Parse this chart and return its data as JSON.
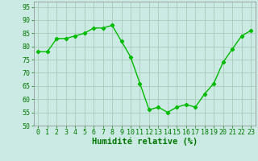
{
  "x": [
    0,
    1,
    2,
    3,
    4,
    5,
    6,
    7,
    8,
    9,
    10,
    11,
    12,
    13,
    14,
    15,
    16,
    17,
    18,
    19,
    20,
    21,
    22,
    23
  ],
  "y": [
    78,
    78,
    83,
    83,
    84,
    85,
    87,
    87,
    88,
    82,
    76,
    66,
    56,
    57,
    55,
    57,
    58,
    57,
    62,
    66,
    74,
    79,
    84,
    86
  ],
  "line_color": "#00bb00",
  "marker": "D",
  "marker_size": 2.2,
  "bg_color": "#cceae4",
  "grid_color": "#aaccbb",
  "xlabel": "Humidité relative (%)",
  "xlabel_color": "#007700",
  "xlabel_fontsize": 7.5,
  "tick_color": "#007700",
  "tick_fontsize": 6,
  "ylim": [
    50,
    97
  ],
  "yticks": [
    50,
    55,
    60,
    65,
    70,
    75,
    80,
    85,
    90,
    95
  ],
  "xlim": [
    -0.5,
    23.5
  ]
}
